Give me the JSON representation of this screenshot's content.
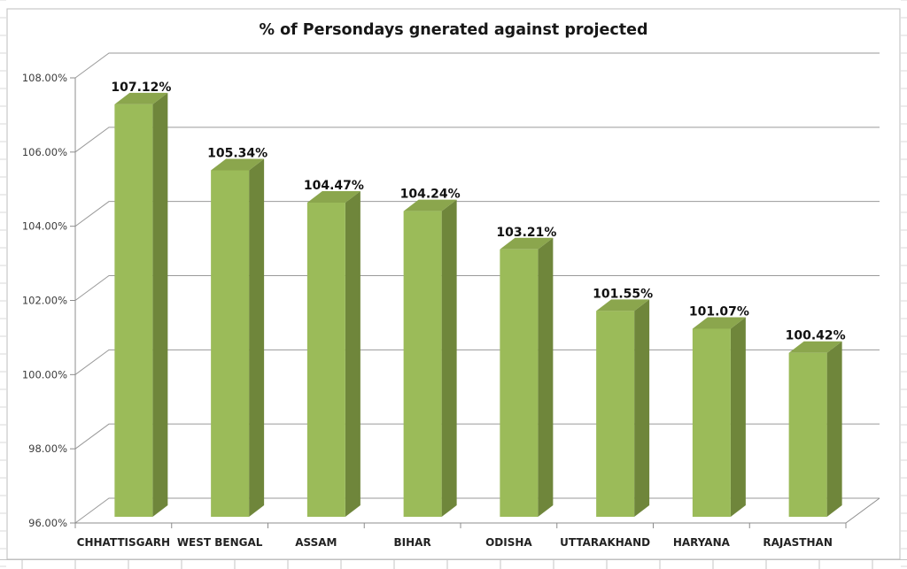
{
  "chart_data": {
    "type": "bar",
    "style": "3d-column",
    "title": "% of Persondays gnerated against projected",
    "categories": [
      "CHHATTISGARH",
      "WEST BENGAL",
      "ASSAM",
      "BIHAR",
      "ODISHA",
      "UTTARAKHAND",
      "HARYANA",
      "RAJASTHAN"
    ],
    "values": [
      107.12,
      105.34,
      104.47,
      104.24,
      103.21,
      101.55,
      101.07,
      100.42
    ],
    "value_labels": [
      "107.12%",
      "105.34%",
      "104.47%",
      "104.24%",
      "103.21%",
      "101.55%",
      "101.07%",
      "100.42%"
    ],
    "xlabel": "",
    "ylabel": "",
    "ylim": [
      96,
      108
    ],
    "ytick_step": 2,
    "ytick_labels": [
      "96.00%",
      "98.00%",
      "100.00%",
      "102.00%",
      "104.00%",
      "106.00%",
      "108.00%"
    ],
    "grid": true,
    "legend": null,
    "colors": {
      "bar_front": "#9bbb59",
      "bar_top": "#8ba64d",
      "bar_side": "#6f863b",
      "gridline": "#9a9a9a",
      "axis": "#8c8c8c",
      "value_label_text": "#111111",
      "category_label_text": "#222222",
      "ytick_text": "#3c3c3c",
      "chart_border": "#bdbdbd",
      "backdrop_line": "#d9d9d9",
      "background": "#ffffff"
    }
  }
}
